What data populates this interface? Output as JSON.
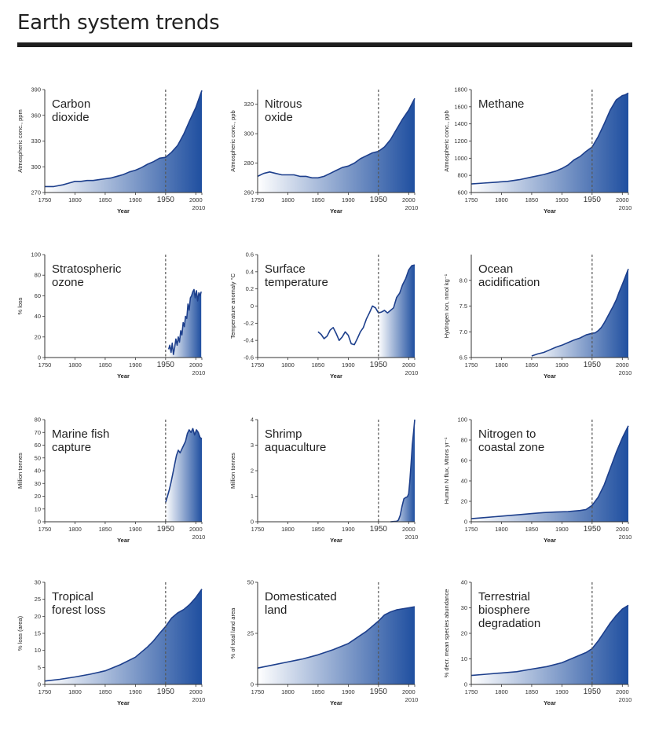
{
  "page": {
    "title": "Earth system trends"
  },
  "colors": {
    "fill_light": "#ffffff",
    "fill_dark": "#1f4fa0",
    "line": "#1d3f8c",
    "axis": "#333333",
    "marker": "#555555"
  },
  "chart_data": [
    {
      "type": "area",
      "title": "Carbon dioxide",
      "title_lines": [
        "Carbon",
        "dioxide"
      ],
      "ylabel": "Atmospheric conc., ppm",
      "xlabel": "Year",
      "xlim": [
        1750,
        2010
      ],
      "ylim": [
        270,
        390
      ],
      "yticks": [
        "270",
        "300",
        "330",
        "360",
        "390"
      ],
      "x": [
        1750,
        1765,
        1780,
        1790,
        1800,
        1810,
        1820,
        1830,
        1840,
        1850,
        1860,
        1870,
        1880,
        1890,
        1900,
        1910,
        1920,
        1930,
        1940,
        1950,
        1960,
        1970,
        1980,
        1990,
        2000,
        2010
      ],
      "y": [
        277,
        277,
        279,
        281,
        283,
        283,
        284,
        284,
        285,
        286,
        287,
        289,
        291,
        294,
        296,
        299,
        303,
        306,
        310,
        311,
        317,
        325,
        338,
        354,
        369,
        389
      ],
      "start_fill": 1750,
      "marker_year": 1950
    },
    {
      "type": "area",
      "title": "Nitrous oxide",
      "title_lines": [
        "Nitrous",
        "oxide"
      ],
      "ylabel": "Atmospheric conc., ppb",
      "xlabel": "Year",
      "xlim": [
        1750,
        2010
      ],
      "ylim": [
        260,
        330
      ],
      "yticks": [
        "260",
        "280",
        "300",
        "320"
      ],
      "x": [
        1750,
        1760,
        1770,
        1780,
        1790,
        1800,
        1810,
        1820,
        1830,
        1840,
        1850,
        1860,
        1870,
        1880,
        1890,
        1900,
        1910,
        1920,
        1930,
        1940,
        1950,
        1960,
        1970,
        1980,
        1990,
        2000,
        2010
      ],
      "y": [
        271,
        273,
        274,
        273,
        272,
        272,
        272,
        271,
        271,
        270,
        270,
        271,
        273,
        275,
        277,
        278,
        280,
        283,
        285,
        287,
        288,
        291,
        296,
        303,
        310,
        316,
        324
      ],
      "start_fill": 1750,
      "marker_year": 1950
    },
    {
      "type": "area",
      "title": "Methane",
      "title_lines": [
        "Methane"
      ],
      "ylabel": "Atmospheric conc., ppb",
      "xlabel": "Year",
      "xlim": [
        1750,
        2010
      ],
      "ylim": [
        600,
        1800
      ],
      "yticks": [
        "600",
        "800",
        "1000",
        "1200",
        "1400",
        "1600",
        "1800"
      ],
      "x": [
        1750,
        1770,
        1790,
        1810,
        1830,
        1850,
        1870,
        1890,
        1900,
        1910,
        1920,
        1930,
        1940,
        1950,
        1960,
        1970,
        1980,
        1990,
        2000,
        2005,
        2010
      ],
      "y": [
        700,
        710,
        720,
        730,
        750,
        780,
        810,
        850,
        880,
        920,
        980,
        1020,
        1080,
        1130,
        1250,
        1400,
        1560,
        1680,
        1730,
        1740,
        1760
      ],
      "start_fill": 1750,
      "marker_year": 1950
    },
    {
      "type": "area",
      "title": "Stratospheric ozone",
      "title_lines": [
        "Stratospheric",
        "ozone"
      ],
      "ylabel": "% loss",
      "xlabel": "Year",
      "xlim": [
        1750,
        2010
      ],
      "ylim": [
        0,
        100
      ],
      "yticks": [
        "0",
        "20",
        "40",
        "60",
        "80",
        "100"
      ],
      "x": [
        1955,
        1957,
        1959,
        1961,
        1963,
        1965,
        1967,
        1969,
        1971,
        1973,
        1975,
        1977,
        1979,
        1981,
        1983,
        1985,
        1987,
        1989,
        1991,
        1993,
        1995,
        1997,
        1999,
        2001,
        2003,
        2005,
        2007,
        2009
      ],
      "y": [
        8,
        12,
        5,
        14,
        3,
        10,
        18,
        12,
        20,
        15,
        26,
        22,
        34,
        30,
        40,
        38,
        52,
        46,
        58,
        60,
        64,
        66,
        58,
        65,
        55,
        63,
        60,
        64
      ],
      "start_fill": 1955,
      "marker_year": 1950
    },
    {
      "type": "area",
      "title": "Surface temperature",
      "title_lines": [
        "Surface",
        "temperature"
      ],
      "ylabel": "Temperature anomaly °C",
      "xlabel": "Year",
      "xlim": [
        1750,
        2010
      ],
      "ylim": [
        -0.6,
        0.6
      ],
      "yticks": [
        "-0.6",
        "-0.4",
        "-0.2",
        "0",
        "0.2",
        "0.4",
        "0.6"
      ],
      "x": [
        1850,
        1855,
        1860,
        1865,
        1870,
        1875,
        1880,
        1885,
        1890,
        1895,
        1900,
        1905,
        1910,
        1915,
        1920,
        1925,
        1930,
        1935,
        1940,
        1945,
        1950,
        1955,
        1960,
        1965,
        1970,
        1975,
        1980,
        1985,
        1990,
        1995,
        2000,
        2005,
        2010
      ],
      "y": [
        -0.3,
        -0.33,
        -0.38,
        -0.35,
        -0.28,
        -0.25,
        -0.32,
        -0.4,
        -0.36,
        -0.3,
        -0.34,
        -0.44,
        -0.45,
        -0.38,
        -0.3,
        -0.25,
        -0.15,
        -0.08,
        0.0,
        -0.02,
        -0.08,
        -0.07,
        -0.05,
        -0.08,
        -0.05,
        -0.02,
        0.1,
        0.15,
        0.25,
        0.32,
        0.42,
        0.47,
        0.48
      ],
      "start_fill": 1950,
      "marker_year": 1950
    },
    {
      "type": "area",
      "title": "Ocean acidification",
      "title_lines": [
        "Ocean",
        "acidification"
      ],
      "ylabel": "Hydrogen ion, nmol kg⁻¹",
      "xlabel": "Year",
      "xlim": [
        1750,
        2010
      ],
      "ylim": [
        6.5,
        8.5
      ],
      "yticks": [
        "6.5",
        "7.0",
        "7.5",
        "8.0"
      ],
      "x": [
        1850,
        1860,
        1870,
        1880,
        1890,
        1900,
        1910,
        1920,
        1930,
        1940,
        1950,
        1955,
        1960,
        1965,
        1970,
        1975,
        1980,
        1985,
        1990,
        1995,
        2000,
        2005,
        2010
      ],
      "y": [
        6.53,
        6.57,
        6.6,
        6.65,
        6.7,
        6.74,
        6.79,
        6.84,
        6.88,
        6.94,
        6.97,
        6.98,
        7.02,
        7.08,
        7.17,
        7.28,
        7.39,
        7.5,
        7.62,
        7.78,
        7.92,
        8.07,
        8.22
      ],
      "start_fill": 1850,
      "marker_year": 1950
    },
    {
      "type": "area",
      "title": "Marine fish capture",
      "title_lines": [
        "Marine fish",
        "capture"
      ],
      "ylabel": "Million tonnes",
      "xlabel": "Year",
      "xlim": [
        1750,
        2010
      ],
      "ylim": [
        0,
        80
      ],
      "yticks": [
        "0",
        "10",
        "20",
        "30",
        "40",
        "50",
        "60",
        "70",
        "80"
      ],
      "x": [
        1950,
        1953,
        1956,
        1959,
        1962,
        1965,
        1968,
        1971,
        1974,
        1977,
        1980,
        1983,
        1986,
        1989,
        1992,
        1995,
        1998,
        2001,
        2004,
        2007,
        2010
      ],
      "y": [
        15,
        20,
        25,
        31,
        38,
        45,
        52,
        56,
        54,
        57,
        60,
        63,
        69,
        72,
        70,
        73,
        68,
        72,
        70,
        66,
        65
      ],
      "start_fill": 1950,
      "marker_year": 1950
    },
    {
      "type": "area",
      "title": "Shrimp aquaculture",
      "title_lines": [
        "Shrimp",
        "aquaculture"
      ],
      "ylabel": "Million tonnes",
      "xlabel": "Year",
      "xlim": [
        1750,
        2010
      ],
      "ylim": [
        0,
        4
      ],
      "yticks": [
        "0",
        "1",
        "2",
        "3",
        "4"
      ],
      "x": [
        1970,
        1975,
        1980,
        1983,
        1986,
        1989,
        1992,
        1995,
        1998,
        2000,
        2002,
        2004,
        2006,
        2008,
        2010
      ],
      "y": [
        0.0,
        0.01,
        0.02,
        0.06,
        0.25,
        0.6,
        0.9,
        0.95,
        0.98,
        1.1,
        1.6,
        2.3,
        3.0,
        3.5,
        4.0
      ],
      "start_fill": 1970,
      "marker_year": 1950
    },
    {
      "type": "area",
      "title": "Nitrogen to coastal zone",
      "title_lines": [
        "Nitrogen to",
        "coastal zone"
      ],
      "ylabel": "Human N flux, Mtons yr⁻¹",
      "xlabel": "Year",
      "xlim": [
        1750,
        2010
      ],
      "ylim": [
        0,
        100
      ],
      "yticks": [
        "0",
        "20",
        "40",
        "60",
        "80",
        "100"
      ],
      "x": [
        1750,
        1770,
        1790,
        1810,
        1830,
        1850,
        1870,
        1890,
        1910,
        1930,
        1940,
        1950,
        1960,
        1970,
        1980,
        1990,
        2000,
        2010
      ],
      "y": [
        3,
        4,
        5,
        6,
        7,
        8,
        9,
        9.5,
        10,
        11,
        12,
        16,
        24,
        36,
        52,
        68,
        82,
        94
      ],
      "start_fill": 1750,
      "marker_year": 1950
    },
    {
      "type": "area",
      "title": "Tropical forest loss",
      "title_lines": [
        "Tropical",
        "forest loss"
      ],
      "ylabel": "% loss (area)",
      "xlabel": "Year",
      "xlim": [
        1750,
        2010
      ],
      "ylim": [
        0,
        30
      ],
      "yticks": [
        "0",
        "5",
        "10",
        "15",
        "20",
        "25",
        "30"
      ],
      "x": [
        1750,
        1775,
        1800,
        1825,
        1850,
        1875,
        1900,
        1910,
        1920,
        1930,
        1940,
        1950,
        1960,
        1970,
        1980,
        1990,
        2000,
        2010
      ],
      "y": [
        1,
        1.5,
        2.2,
        3,
        4,
        5.8,
        8,
        9.5,
        11,
        12.8,
        15,
        17,
        19.5,
        21,
        22,
        23.5,
        25.5,
        28
      ],
      "start_fill": 1750,
      "marker_year": 1950
    },
    {
      "type": "area",
      "title": "Domesticated land",
      "title_lines": [
        "Domesticated",
        "land"
      ],
      "ylabel": "% of total land area",
      "xlabel": "Year",
      "xlim": [
        1750,
        2010
      ],
      "ylim": [
        0,
        50
      ],
      "yticks": [
        "0",
        "25",
        "50"
      ],
      "x": [
        1750,
        1775,
        1800,
        1825,
        1850,
        1875,
        1900,
        1910,
        1920,
        1930,
        1940,
        1950,
        1960,
        1970,
        1980,
        1990,
        2000,
        2010
      ],
      "y": [
        8,
        9.5,
        11,
        12.5,
        14.5,
        17,
        20,
        22,
        24,
        26,
        28.5,
        31,
        34,
        35.5,
        36.5,
        37,
        37.5,
        38
      ],
      "start_fill": 1750,
      "marker_year": 1950
    },
    {
      "type": "area",
      "title": "Terrestrial biosphere degradation",
      "title_lines": [
        "Terrestrial",
        "biosphere",
        "degradation"
      ],
      "ylabel": "% decr. mean species abundance",
      "xlabel": "Year",
      "xlim": [
        1750,
        2010
      ],
      "ylim": [
        0,
        40
      ],
      "yticks": [
        "0",
        "10",
        "20",
        "30",
        "40"
      ],
      "x": [
        1750,
        1775,
        1800,
        1825,
        1850,
        1875,
        1900,
        1910,
        1920,
        1930,
        1940,
        1950,
        1960,
        1970,
        1980,
        1990,
        2000,
        2010
      ],
      "y": [
        3.5,
        4,
        4.5,
        5,
        6,
        7,
        8.5,
        9.5,
        10.5,
        11.5,
        12.5,
        14,
        17,
        20.5,
        24,
        27,
        29.5,
        31
      ],
      "start_fill": 1750,
      "marker_year": 1950
    }
  ],
  "xtick_labels": [
    "1750",
    "1800",
    "1850",
    "1900",
    "1950",
    "2000"
  ],
  "end_label": "2010"
}
